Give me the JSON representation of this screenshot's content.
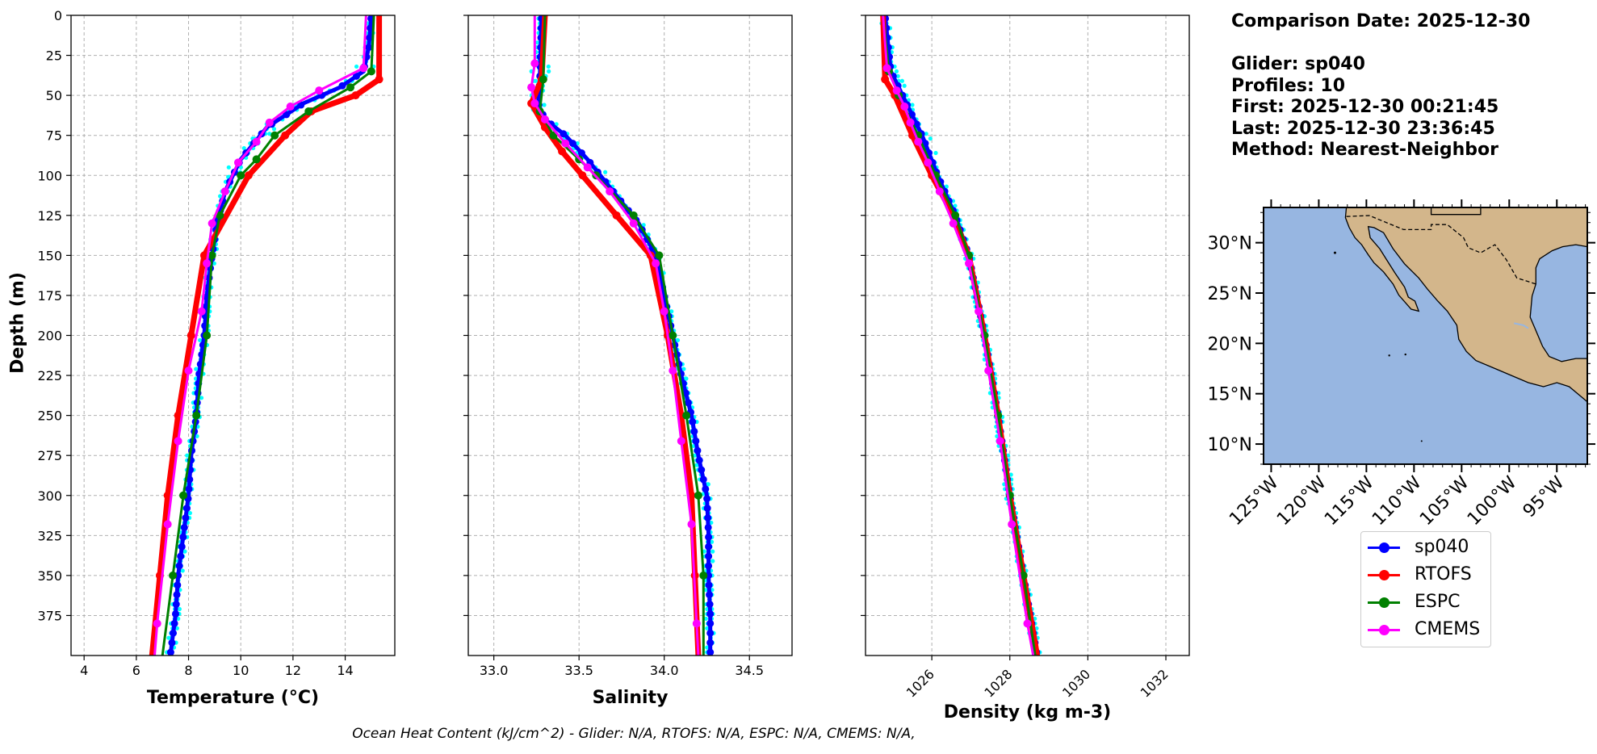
{
  "info": {
    "comparison_date": "Comparison Date: 2025-12-30",
    "glider": "Glider: sp040",
    "profiles": "Profiles: 10",
    "first": "First: 2025-12-30 00:21:45",
    "last": "Last: 2025-12-30 23:36:45",
    "method": "Method: Nearest-Neighbor"
  },
  "footer": "Ocean Heat Content (kJ/cm^2) - Glider: N/A,  RTOFS: N/A,  ESPC: N/A,  CMEMS: N/A,",
  "colors": {
    "glider": "#0000ff",
    "glider_points": "#00ffff",
    "rtofs": "#ff0000",
    "espc": "#008000",
    "cmems": "#ff00ff",
    "ocean": "#97b6e1",
    "land": "#d3b68b",
    "grid": "#b0b0b0"
  },
  "legend": [
    {
      "label": "sp040",
      "color": "#0000ff"
    },
    {
      "label": "RTOFS",
      "color": "#ff0000"
    },
    {
      "label": "ESPC",
      "color": "#008000"
    },
    {
      "label": "CMEMS",
      "color": "#ff00ff"
    }
  ],
  "depth_axis": {
    "label": "Depth (m)",
    "ticks": [
      0,
      25,
      50,
      75,
      100,
      125,
      150,
      175,
      200,
      225,
      250,
      275,
      300,
      325,
      350,
      375
    ],
    "range": [
      0,
      400
    ],
    "inverted": true
  },
  "chart_data": [
    {
      "type": "line",
      "variable": "temperature",
      "xlabel": "Temperature (°C)",
      "xlim": [
        3.5,
        15.9
      ],
      "xticks": [
        4,
        6,
        8,
        10,
        12,
        14
      ],
      "grid": true,
      "series": [
        {
          "name": "sp040",
          "depth": [
            0,
            20,
            35,
            45,
            55,
            70,
            90,
            110,
            130,
            150,
            175,
            200,
            225,
            250,
            275,
            300,
            325,
            350,
            375,
            400
          ],
          "values": [
            15.0,
            14.9,
            14.7,
            13.8,
            12.4,
            11.0,
            10.0,
            9.4,
            9.1,
            8.9,
            8.7,
            8.6,
            8.4,
            8.3,
            8.1,
            8.0,
            7.8,
            7.6,
            7.5,
            7.3
          ]
        },
        {
          "name": "RTOFS",
          "depth": [
            0,
            40,
            50,
            60,
            75,
            100,
            150,
            200,
            250,
            300,
            350,
            400
          ],
          "values": [
            15.3,
            15.3,
            14.4,
            12.7,
            11.7,
            10.3,
            8.6,
            8.1,
            7.6,
            7.2,
            6.9,
            6.6
          ]
        },
        {
          "name": "ESPC",
          "depth": [
            0,
            35,
            45,
            60,
            75,
            90,
            100,
            125,
            150,
            200,
            250,
            300,
            350,
            400
          ],
          "values": [
            15.1,
            15.0,
            14.2,
            12.6,
            11.3,
            10.6,
            10.0,
            9.2,
            8.9,
            8.7,
            8.3,
            7.8,
            7.4,
            7.0
          ]
        },
        {
          "name": "CMEMS",
          "depth": [
            0,
            33,
            47,
            57,
            67,
            79,
            92,
            110,
            130,
            155,
            185,
            222,
            266,
            318,
            380,
            400
          ],
          "values": [
            14.8,
            14.7,
            13.0,
            11.9,
            11.1,
            10.6,
            9.9,
            9.4,
            8.9,
            8.7,
            8.5,
            8.0,
            7.6,
            7.2,
            6.8,
            6.7
          ]
        }
      ]
    },
    {
      "type": "line",
      "variable": "salinity",
      "xlabel": "Salinity",
      "xlim": [
        32.85,
        34.75
      ],
      "xticks": [
        33.0,
        33.5,
        34.0,
        34.5
      ],
      "grid": true,
      "series": [
        {
          "name": "sp040",
          "depth": [
            0,
            40,
            55,
            65,
            75,
            90,
            110,
            130,
            150,
            175,
            200,
            225,
            250,
            275,
            300,
            325,
            350,
            375,
            400
          ],
          "values": [
            33.28,
            33.27,
            33.26,
            33.3,
            33.42,
            33.55,
            33.7,
            33.85,
            33.95,
            34.0,
            34.05,
            34.1,
            34.16,
            34.2,
            34.25,
            34.26,
            34.26,
            34.27,
            34.27
          ]
        },
        {
          "name": "RTOFS",
          "depth": [
            0,
            40,
            55,
            70,
            85,
            100,
            125,
            150,
            200,
            250,
            300,
            350,
            400
          ],
          "values": [
            33.3,
            33.28,
            33.22,
            33.3,
            33.4,
            33.52,
            33.72,
            33.92,
            34.02,
            34.1,
            34.16,
            34.18,
            34.2
          ]
        },
        {
          "name": "ESPC",
          "depth": [
            0,
            40,
            60,
            75,
            90,
            100,
            125,
            150,
            200,
            250,
            300,
            350,
            400
          ],
          "values": [
            33.3,
            33.29,
            33.27,
            33.35,
            33.5,
            33.6,
            33.82,
            33.97,
            34.05,
            34.13,
            34.2,
            34.23,
            34.23
          ]
        },
        {
          "name": "CMEMS",
          "depth": [
            0,
            30,
            45,
            55,
            65,
            80,
            95,
            110,
            130,
            155,
            185,
            222,
            266,
            318,
            380,
            400
          ],
          "values": [
            33.24,
            33.24,
            33.22,
            33.24,
            33.3,
            33.42,
            33.55,
            33.68,
            33.82,
            33.95,
            34.0,
            34.05,
            34.1,
            34.16,
            34.19,
            34.2
          ]
        }
      ]
    },
    {
      "type": "line",
      "variable": "density",
      "xlabel": "Density (kg m-3)",
      "xlim": [
        1024.3,
        1032.6
      ],
      "xticks": [
        1026,
        1028,
        1030,
        1032
      ],
      "grid": true,
      "series": [
        {
          "name": "sp040",
          "depth": [
            0,
            35,
            50,
            75,
            100,
            125,
            150,
            175,
            200,
            250,
            300,
            350,
            400
          ],
          "values": [
            1024.8,
            1024.95,
            1025.25,
            1025.75,
            1026.15,
            1026.6,
            1026.95,
            1027.15,
            1027.35,
            1027.7,
            1028.0,
            1028.35,
            1028.7
          ]
        },
        {
          "name": "RTOFS",
          "depth": [
            0,
            40,
            50,
            75,
            100,
            125,
            150,
            200,
            250,
            300,
            350,
            400
          ],
          "values": [
            1024.75,
            1024.8,
            1025.05,
            1025.5,
            1026.0,
            1026.55,
            1026.95,
            1027.35,
            1027.7,
            1028.0,
            1028.35,
            1028.7
          ]
        },
        {
          "name": "ESPC",
          "depth": [
            0,
            35,
            50,
            75,
            100,
            125,
            150,
            200,
            250,
            300,
            350,
            400
          ],
          "values": [
            1024.75,
            1024.9,
            1025.15,
            1025.65,
            1026.1,
            1026.6,
            1026.95,
            1027.35,
            1027.7,
            1028.0,
            1028.35,
            1028.65
          ]
        },
        {
          "name": "CMEMS",
          "depth": [
            0,
            33,
            47,
            57,
            67,
            79,
            92,
            110,
            130,
            155,
            185,
            222,
            266,
            318,
            380,
            400
          ],
          "values": [
            1024.75,
            1024.85,
            1025.1,
            1025.3,
            1025.45,
            1025.65,
            1025.9,
            1026.2,
            1026.55,
            1026.95,
            1027.2,
            1027.45,
            1027.75,
            1028.05,
            1028.45,
            1028.6
          ]
        }
      ]
    }
  ],
  "map": {
    "lat_labels": [
      "30°N",
      "25°N",
      "20°N",
      "15°N",
      "10°N"
    ],
    "lat_values": [
      30,
      25,
      20,
      15,
      10
    ],
    "lon_labels": [
      "125°W",
      "120°W",
      "115°W",
      "110°W",
      "105°W",
      "100°W",
      "95°W"
    ],
    "lon_values": [
      -125,
      -120,
      -115,
      -110,
      -105,
      -100,
      -95
    ],
    "lon_range": [
      -125.8,
      -91.8
    ],
    "lat_range": [
      8.0,
      33.5
    ]
  }
}
